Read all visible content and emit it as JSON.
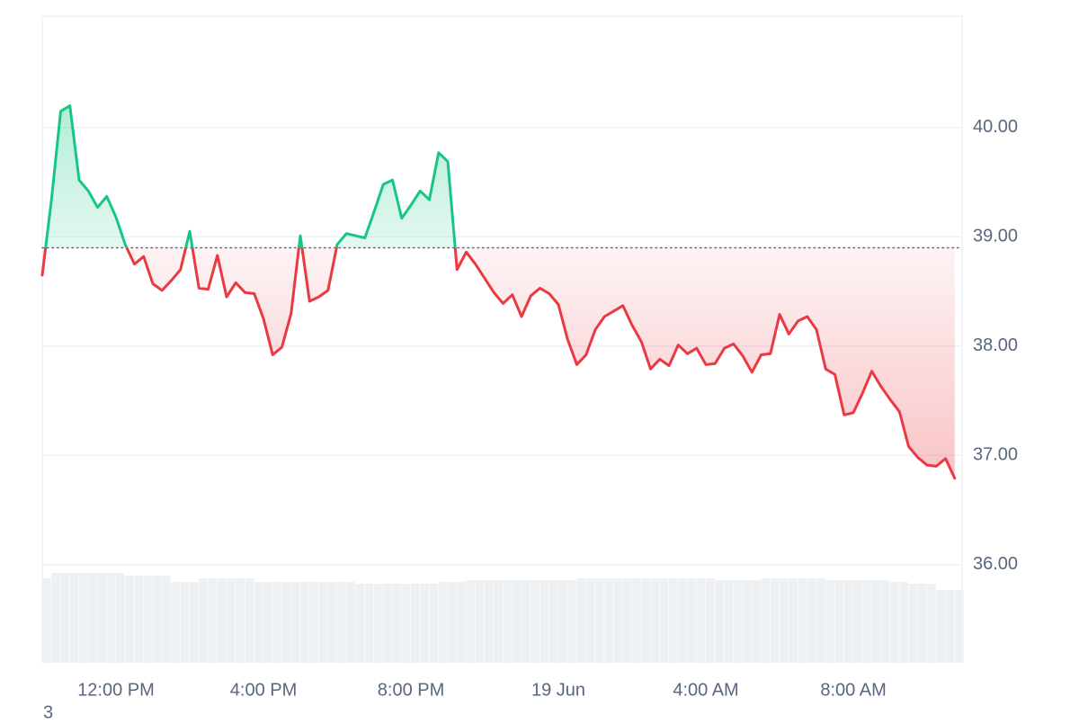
{
  "chart_data": {
    "type": "line",
    "x": [
      10,
      10.25,
      10.5,
      10.75,
      11,
      11.25,
      11.5,
      11.75,
      12,
      12.25,
      12.5,
      12.75,
      13,
      13.25,
      13.5,
      13.75,
      14,
      14.25,
      14.5,
      14.75,
      15,
      15.25,
      15.5,
      15.75,
      16,
      16.25,
      16.5,
      16.75,
      17,
      17.25,
      17.5,
      17.75,
      18,
      18.25,
      18.5,
      18.75,
      19,
      19.25,
      19.5,
      19.75,
      20,
      20.25,
      20.5,
      20.75,
      21,
      21.25,
      21.5,
      21.75,
      22,
      22.25,
      22.5,
      22.75,
      23,
      23.25,
      23.5,
      23.75,
      24,
      24.25,
      24.5,
      24.75,
      25,
      25.25,
      25.5,
      25.75,
      26,
      26.25,
      26.5,
      26.75,
      27,
      27.25,
      27.5,
      27.75,
      28,
      28.25,
      28.5,
      28.75,
      29,
      29.25,
      29.5,
      29.75,
      30,
      30.25,
      30.5,
      30.75,
      31,
      31.25,
      31.5,
      31.75,
      32,
      32.25,
      32.5,
      32.75,
      33,
      33.25,
      33.5,
      33.75,
      34,
      34.25,
      34.5,
      34.75
    ],
    "series": [
      {
        "values": [
          38.65,
          39.34,
          40.15,
          40.2,
          39.52,
          39.42,
          39.27,
          39.37,
          39.18,
          38.93,
          38.75,
          38.82,
          38.57,
          38.51,
          38.6,
          38.7,
          39.05,
          38.53,
          38.52,
          38.83,
          38.45,
          38.58,
          38.49,
          38.48,
          38.25,
          37.92,
          37.99,
          38.3,
          39.01,
          38.41,
          38.45,
          38.51,
          38.93,
          39.03,
          39.01,
          38.99,
          39.23,
          39.48,
          39.52,
          39.17,
          39.29,
          39.42,
          39.34,
          39.77,
          39.69,
          38.7,
          38.86,
          38.75,
          38.62,
          38.49,
          38.39,
          38.47,
          38.27,
          38.46,
          38.53,
          38.48,
          38.38,
          38.06,
          37.83,
          37.92,
          38.15,
          38.27,
          38.32,
          38.37,
          38.19,
          38.04,
          37.79,
          37.88,
          37.82,
          38.01,
          37.93,
          37.98,
          37.83,
          37.84,
          37.98,
          38.02,
          37.91,
          37.76,
          37.92,
          37.93,
          38.29,
          38.11,
          38.23,
          38.27,
          38.15,
          37.79,
          37.74,
          37.37,
          37.39,
          37.57,
          37.77,
          37.63,
          37.51,
          37.4,
          37.08,
          36.98,
          36.91,
          36.9,
          36.97,
          36.79
        ]
      }
    ],
    "baseline": 38.9,
    "up_color": "#16c784",
    "down_color": "#ea3943",
    "volume": [
      94,
      100,
      100,
      100,
      100,
      100,
      100,
      100,
      100,
      97,
      97,
      97,
      97,
      97,
      90,
      90,
      90,
      94,
      94,
      94,
      94,
      94,
      94,
      90,
      90,
      90,
      90,
      90,
      90,
      90,
      90,
      90,
      90,
      90,
      88,
      88,
      88,
      88,
      88,
      88,
      88,
      88,
      88,
      90,
      90,
      90,
      92,
      92,
      92,
      92,
      92,
      92,
      92,
      92,
      92,
      92,
      92,
      92,
      94,
      94,
      94,
      94,
      94,
      94,
      94,
      94,
      94,
      94,
      94,
      94,
      94,
      94,
      94,
      92,
      92,
      92,
      92,
      92,
      94,
      94,
      94,
      94,
      94,
      94,
      94,
      92,
      92,
      92,
      92,
      92,
      92,
      92,
      90,
      90,
      88,
      88,
      88,
      81,
      81,
      81
    ],
    "volume_lim": [
      0,
      100
    ],
    "volume_color": "#eef1f4",
    "xlim": [
      10,
      34.95
    ],
    "xticks": [
      {
        "value": 12,
        "label": "12:00 PM"
      },
      {
        "value": 16,
        "label": "4:00 PM"
      },
      {
        "value": 20,
        "label": "8:00 PM"
      },
      {
        "value": 24,
        "label": "19 Jun"
      },
      {
        "value": 28,
        "label": "4:00 AM"
      },
      {
        "value": 32,
        "label": "8:00 AM"
      }
    ],
    "ylim": [
      35.1,
      41.02
    ],
    "yticks": [
      {
        "value": 36,
        "label": "36.00"
      },
      {
        "value": 37,
        "label": "37.00"
      },
      {
        "value": 38,
        "label": "38.00"
      },
      {
        "value": 39,
        "label": "39.00"
      },
      {
        "value": 40,
        "label": "40.00"
      }
    ],
    "grid": true
  },
  "footer": "3"
}
